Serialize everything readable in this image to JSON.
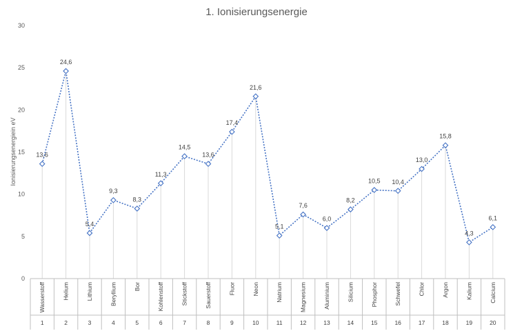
{
  "chart_data": {
    "type": "line",
    "title": "1. Ionisierungsenergie",
    "ylabel": "Ionisierungsenergiein eV",
    "xlabel": "",
    "ylim": [
      0,
      30
    ],
    "yticks": [
      0,
      5,
      10,
      15,
      20,
      25,
      30
    ],
    "ytick_labels": [
      "0",
      "5",
      "10",
      "15",
      "20",
      "25",
      "30"
    ],
    "grid": "vertical drop lines from points to axis",
    "legend": "none",
    "categories": [
      "Wasserstoff",
      "Helium",
      "Lithium",
      "Beryllium",
      "Bor",
      "Kohlenstoff",
      "Stickstoff",
      "Sauerstoff",
      "Fluor",
      "Neon",
      "Natrium",
      "Magnesium",
      "Aluminium",
      "Silicium",
      "Phosphor",
      "Schwefel",
      "Chlor",
      "Argon",
      "Kalium",
      "Calcium"
    ],
    "numbers": [
      "1",
      "2",
      "3",
      "4",
      "5",
      "6",
      "7",
      "8",
      "9",
      "10",
      "11",
      "12",
      "13",
      "14",
      "15",
      "16",
      "17",
      "18",
      "19",
      "20"
    ],
    "values": [
      13.6,
      24.6,
      5.4,
      9.3,
      8.3,
      11.3,
      14.5,
      13.6,
      17.4,
      21.6,
      5.1,
      7.6,
      6.0,
      8.2,
      10.5,
      10.4,
      13.0,
      15.8,
      4.3,
      6.1
    ],
    "value_labels": [
      "13,6",
      "24,6",
      "5,4",
      "9,3",
      "8,3",
      "11,3",
      "14,5",
      "13,6",
      "17,4",
      "21,6",
      "5,1",
      "7,6",
      "6,0",
      "8,2",
      "10,5",
      "10,4",
      "13,0",
      "15,8",
      "4,3",
      "6,1"
    ],
    "colors": {
      "series": "#4472C4",
      "droplines": "#D9D9D9",
      "axis": "#BFBFBF",
      "text": "#595959"
    }
  }
}
